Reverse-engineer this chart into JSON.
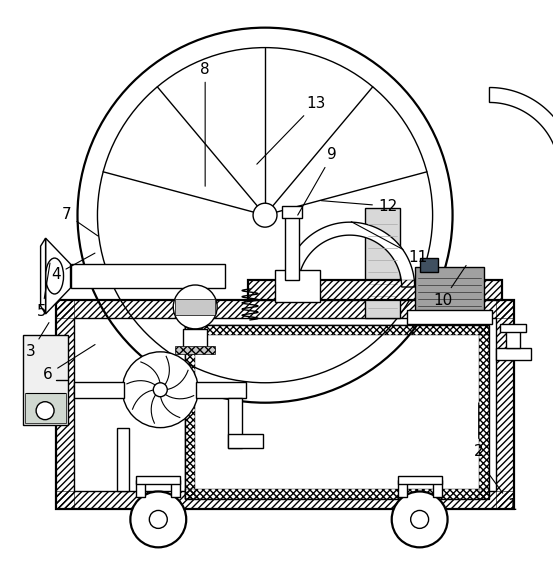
{
  "bg_color": "#ffffff",
  "line_color": "#000000",
  "figsize": [
    5.54,
    5.72
  ],
  "dpi": 100,
  "lw": 1.0,
  "lw2": 1.6,
  "label_positions": {
    "1": {
      "text": [
        0.925,
        0.115
      ],
      "point": [
        0.88,
        0.175
      ]
    },
    "2": {
      "text": [
        0.865,
        0.21
      ],
      "point": [
        0.865,
        0.3
      ]
    },
    "3": {
      "text": [
        0.055,
        0.385
      ],
      "point": [
        0.09,
        0.44
      ]
    },
    "4": {
      "text": [
        0.1,
        0.52
      ],
      "point": [
        0.175,
        0.56
      ]
    },
    "5": {
      "text": [
        0.075,
        0.455
      ],
      "point": [
        0.09,
        0.545
      ]
    },
    "6": {
      "text": [
        0.085,
        0.345
      ],
      "point": [
        0.175,
        0.4
      ]
    },
    "7": {
      "text": [
        0.12,
        0.625
      ],
      "point": [
        0.18,
        0.585
      ]
    },
    "8": {
      "text": [
        0.37,
        0.88
      ],
      "point": [
        0.37,
        0.67
      ]
    },
    "9": {
      "text": [
        0.6,
        0.73
      ],
      "point": [
        0.535,
        0.62
      ]
    },
    "10": {
      "text": [
        0.8,
        0.475
      ],
      "point": [
        0.845,
        0.54
      ]
    },
    "11": {
      "text": [
        0.755,
        0.55
      ],
      "point": [
        0.63,
        0.615
      ]
    },
    "12": {
      "text": [
        0.7,
        0.64
      ],
      "point": [
        0.575,
        0.65
      ]
    },
    "13": {
      "text": [
        0.57,
        0.82
      ],
      "point": [
        0.46,
        0.71
      ]
    }
  }
}
